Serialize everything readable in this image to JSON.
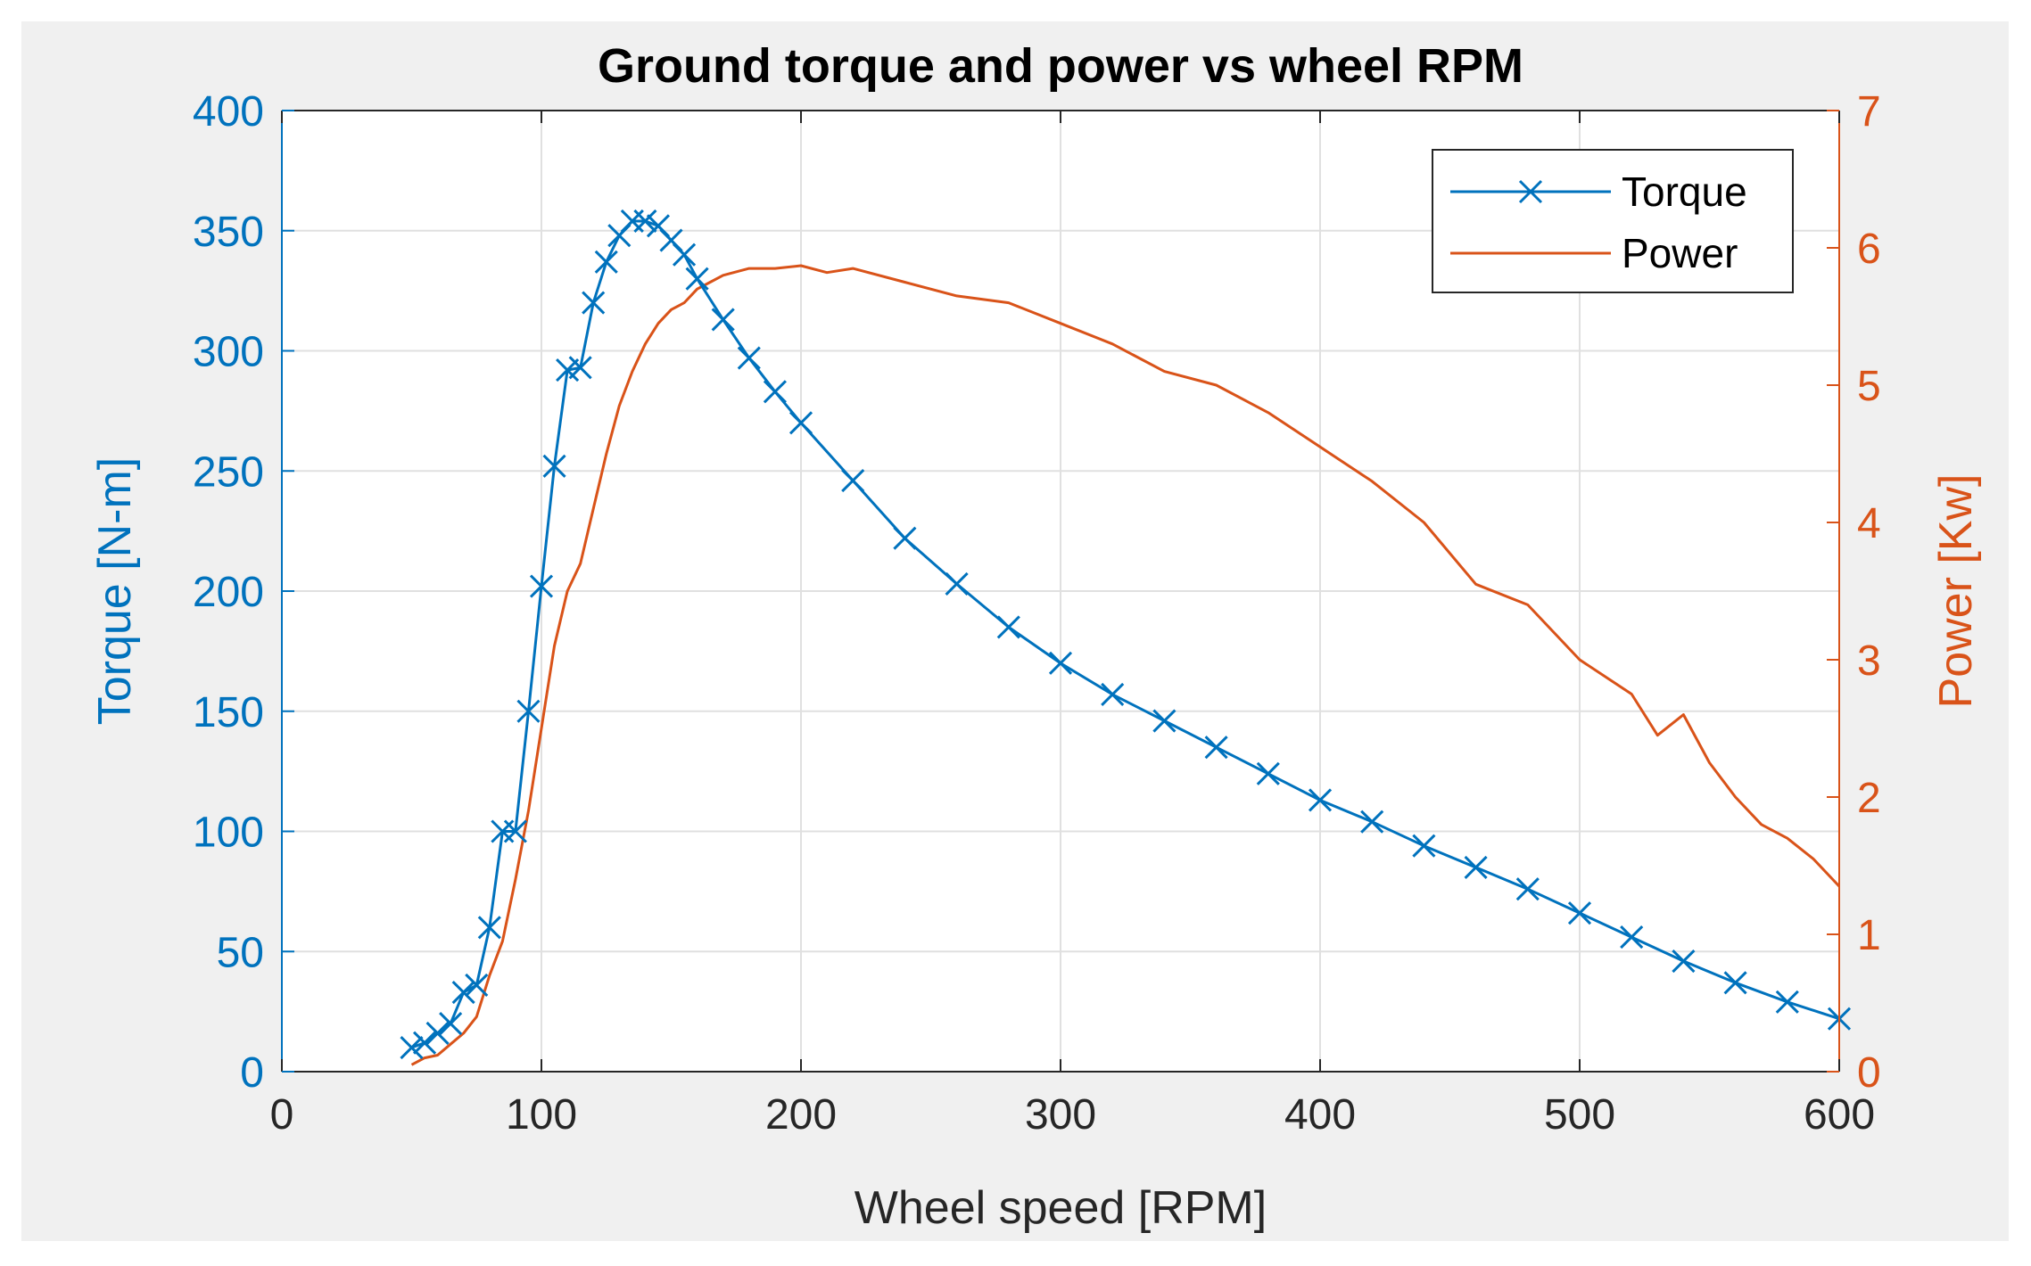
{
  "chart_data": {
    "type": "line",
    "title": "Ground torque and power vs wheel RPM",
    "xlabel": "Wheel speed [RPM]",
    "ylabel_left": "Torque [N-m]",
    "ylabel_right": "Power [Kw]",
    "xlim": [
      0,
      600
    ],
    "ylim_left": [
      0,
      400
    ],
    "ylim_right": [
      0,
      7
    ],
    "x_ticks": [
      0,
      100,
      200,
      300,
      400,
      500,
      600
    ],
    "y_ticks_left": [
      0,
      50,
      100,
      150,
      200,
      250,
      300,
      350,
      400
    ],
    "y_ticks_right": [
      0,
      1,
      2,
      3,
      4,
      5,
      6,
      7
    ],
    "grid": true,
    "legend_position": "top-right",
    "colors": {
      "torque": "#0072BD",
      "power": "#D95319",
      "background": "#F0F0F0",
      "plot_background": "#FFFFFF",
      "grid": "#E0E0E0",
      "axis_left": "#0072BD",
      "axis_right": "#D95319",
      "axis_bottom": "#262626"
    },
    "series": [
      {
        "name": "Torque",
        "axis": "left",
        "marker": "x",
        "x": [
          50,
          55,
          60,
          65,
          70,
          75,
          80,
          85,
          90,
          95,
          100,
          105,
          110,
          115,
          120,
          125,
          130,
          135,
          140,
          145,
          150,
          155,
          160,
          170,
          180,
          190,
          200,
          220,
          240,
          260,
          280,
          300,
          320,
          340,
          360,
          380,
          400,
          420,
          440,
          460,
          480,
          500,
          520,
          540,
          560,
          580,
          600
        ],
        "values": [
          10,
          12,
          16,
          20,
          33,
          36,
          60,
          100,
          100,
          150,
          202,
          252,
          292,
          293,
          320,
          337,
          348,
          354,
          354,
          352,
          346,
          340,
          330,
          313,
          297,
          283,
          270,
          246,
          222,
          203,
          185,
          170,
          157,
          146,
          135,
          124,
          113,
          104,
          94,
          85,
          76,
          66,
          56,
          46,
          37,
          29,
          22
        ]
      },
      {
        "name": "Power",
        "axis": "right",
        "x": [
          50,
          55,
          60,
          65,
          70,
          75,
          80,
          85,
          90,
          95,
          100,
          105,
          110,
          115,
          120,
          125,
          130,
          135,
          140,
          145,
          150,
          155,
          160,
          165,
          170,
          180,
          190,
          200,
          210,
          220,
          240,
          260,
          280,
          300,
          320,
          340,
          360,
          380,
          400,
          420,
          440,
          460,
          480,
          500,
          520,
          530,
          540,
          550,
          560,
          570,
          580,
          590,
          600
        ],
        "values": [
          0.05,
          0.1,
          0.12,
          0.2,
          0.28,
          0.4,
          0.7,
          0.95,
          1.4,
          1.9,
          2.5,
          3.1,
          3.5,
          3.7,
          4.1,
          4.5,
          4.85,
          5.1,
          5.3,
          5.45,
          5.55,
          5.6,
          5.7,
          5.75,
          5.8,
          5.85,
          5.85,
          5.87,
          5.82,
          5.85,
          5.75,
          5.65,
          5.6,
          5.45,
          5.3,
          5.1,
          5.0,
          4.8,
          4.55,
          4.3,
          4.0,
          3.55,
          3.4,
          3.0,
          2.75,
          2.45,
          2.6,
          2.25,
          2.0,
          1.8,
          1.7,
          1.55,
          1.35
        ]
      }
    ]
  }
}
